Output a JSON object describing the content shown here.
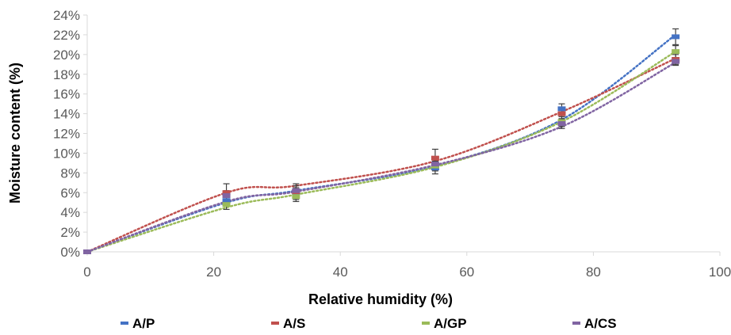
{
  "chart_data": {
    "type": "scatter",
    "title": "",
    "xlabel": "Relative humidity (%)",
    "ylabel": "Moisture content  (%)",
    "xlim": [
      0,
      100
    ],
    "ylim": [
      0,
      24
    ],
    "x_ticks": [
      0,
      20,
      40,
      60,
      80,
      100
    ],
    "y_ticks": [
      0,
      2,
      4,
      6,
      8,
      10,
      12,
      14,
      16,
      18,
      20,
      22,
      24
    ],
    "y_tick_labels": [
      "0%",
      "2%",
      "4%",
      "6%",
      "8%",
      "10%",
      "12%",
      "14%",
      "16%",
      "18%",
      "20%",
      "22%",
      "24%"
    ],
    "grid": false,
    "legend_position": "bottom",
    "trendline": "polynomial, dotted",
    "x": [
      0,
      22,
      33,
      55,
      75,
      93
    ],
    "series": [
      {
        "name": "A/P",
        "color": "#4472C4",
        "values": [
          0,
          5.2,
          6.0,
          8.5,
          14.5,
          21.8
        ],
        "errors": [
          0,
          0.5,
          0.5,
          0.6,
          0.5,
          0.8
        ],
        "trend": [
          0,
          5.0,
          6.2,
          8.7,
          13.4,
          22.0
        ]
      },
      {
        "name": "A/S",
        "color": "#C0504D",
        "values": [
          0,
          6.0,
          6.1,
          9.5,
          14.0,
          19.5
        ],
        "errors": [
          0,
          0.9,
          0.8,
          0.9,
          0.6,
          0.5
        ],
        "trend": [
          0,
          6.0,
          6.7,
          9.2,
          14.2,
          19.6
        ]
      },
      {
        "name": "A/GP",
        "color": "#9BBB59",
        "values": [
          0,
          4.8,
          5.6,
          8.7,
          13.2,
          20.3
        ],
        "errors": [
          0,
          0.5,
          0.5,
          0.5,
          0.5,
          0.6
        ],
        "trend": [
          0,
          4.5,
          5.8,
          8.6,
          13.2,
          20.3
        ]
      },
      {
        "name": "A/CS",
        "color": "#8064A2",
        "values": [
          0,
          5.7,
          6.2,
          8.9,
          13.0,
          19.3
        ],
        "errors": [
          0,
          0.5,
          0.5,
          0.6,
          0.5,
          0.4
        ],
        "trend": [
          0,
          5.1,
          6.1,
          8.8,
          12.7,
          19.2
        ]
      }
    ]
  }
}
